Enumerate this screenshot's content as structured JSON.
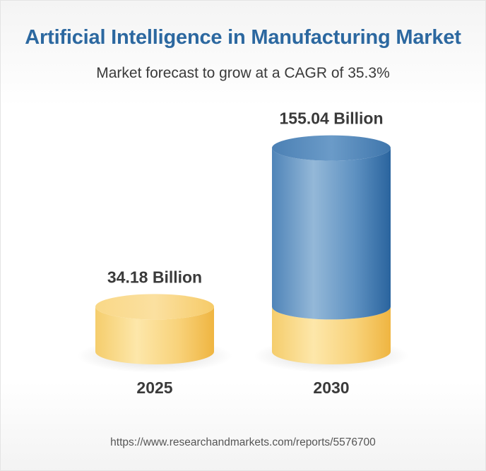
{
  "header": {
    "title": "Artificial Intelligence in Manufacturing Market",
    "subtitle": "Market forecast to grow at a CAGR of 35.3%"
  },
  "footer": {
    "source_url": "https://www.researchandmarkets.com/reports/5576700"
  },
  "colors": {
    "title": "#2c68a0",
    "gold_light": "#fbe4a2",
    "gold_mid": "#f7cf6c",
    "gold_dark": "#efb541",
    "blue_light": "#8cb3d6",
    "blue_mid": "#5d90c0",
    "blue_dark": "#2a649e",
    "label": "#3a3a3a"
  },
  "chart_data": {
    "type": "bar",
    "style": "3d-cylinder",
    "title": "Artificial Intelligence in Manufacturing Market",
    "subtitle": "Market forecast to grow at a CAGR of 35.3%",
    "categories": [
      "2025",
      "2030"
    ],
    "values": [
      34.18,
      155.04
    ],
    "unit": "Billion",
    "value_labels": [
      "34.18 Billion",
      "155.04 Billion"
    ],
    "base_value": 34.18,
    "cagr": "35.3%",
    "xlabel": "",
    "ylabel": "",
    "ylim": [
      0,
      155.04
    ]
  }
}
